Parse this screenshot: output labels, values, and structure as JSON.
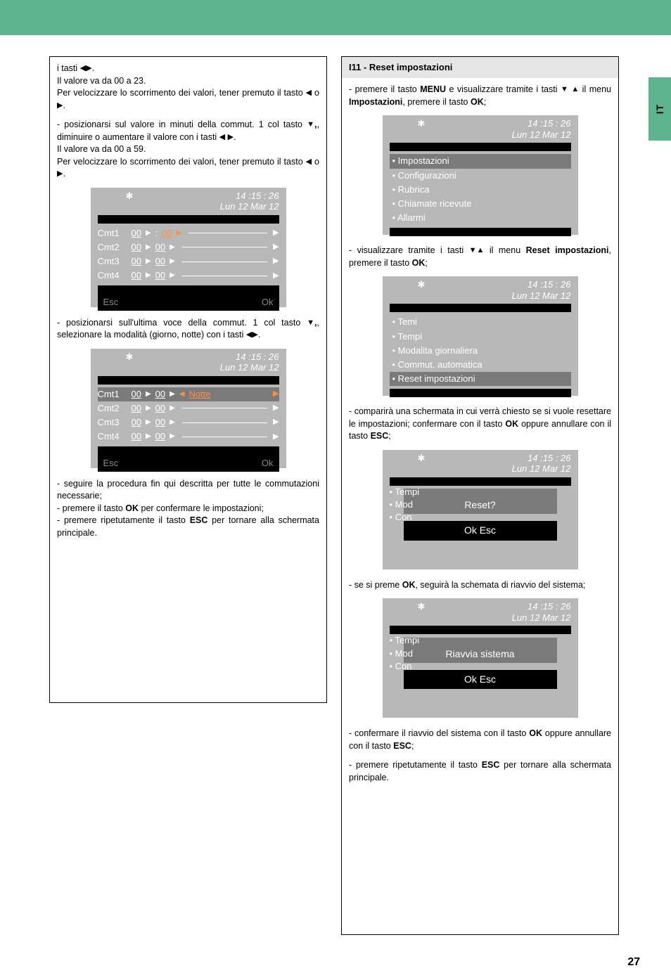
{
  "sideTab": "IT",
  "pageNumber": "27",
  "glyphs": {
    "left": "◀",
    "right": "▶",
    "down": "▼",
    "up": "▲",
    "star": "✱"
  },
  "screens": {
    "timestamp": "14 :15 : 26",
    "date": "Lun 12 Mar 12",
    "cmtLabels": [
      "Cmt1",
      "Cmt2",
      "Cmt3",
      "Cmt4"
    ],
    "esc": "Esc",
    "ok": "Ok",
    "val00": "00",
    "notte": "Notte",
    "mainMenu": [
      "Impostazioni",
      "Configurazioni",
      "Rubrica",
      "Chiamate ricevute",
      "Allarmi"
    ],
    "settingsMenu": [
      "Temi",
      "Tempi",
      "Modalita giornaliera",
      "Commut. automatica",
      "Reset impostazioni"
    ],
    "resetDialog": {
      "behind": [
        "Tempi",
        "Mod",
        "Con"
      ],
      "text": "Reset?",
      "buttons": "Ok   Esc"
    },
    "restartDialog": {
      "behind": [
        "Tempi",
        "Mod",
        "Con"
      ],
      "text": "Riavvia sistema",
      "buttons": "Ok   Esc"
    }
  },
  "left": {
    "p1a": "i tasti ",
    "p1b": ".",
    "p1c": "Il valore va da 00 a 23.",
    "p1d": "Per velocizzare lo scorrimento dei valori, tener premuto il tasto ",
    "p1e": " o ",
    "p1f": ".",
    "p2a": "- posizionarsi sul valore in minuti della commut. 1 col tasto ",
    "p2b": ", diminuire o aumentare il valore con i tasti ",
    "p2c": ".",
    "p2d": "Il valore va da 00 a 59.",
    "p2e": "Per velocizzare lo scorrimento dei valori, tener premuto il tasto ",
    "p2f": " o ",
    "p2g": ".",
    "p3a": "- posizionarsi sull'ultima voce della commut. 1 col tasto ",
    "p3b": ", selezionare la modalità (giorno, notte) con i tasti ",
    "p3c": ".",
    "p4a": "- seguire la procedura fin qui descritta per tutte le commutazioni necessarie;",
    "p4b": "- premere il tasto ",
    "p4b_bold": "OK",
    "p4b_end": " per confermare le impostazioni;",
    "p4c": "- premere ripetutamente il tasto ",
    "p4c_bold": "ESC",
    "p4c_end": " per tornare alla schermata principale."
  },
  "right": {
    "header": "I11 - Reset impostazioni",
    "p1a": "- premere il tasto ",
    "p1a_b": "MENU",
    "p1a_mid": " e visualizzare tramite i tasti ",
    "p1a_mid2": " il menu ",
    "p1a_b2": "Impostazioni",
    "p1a_end": ", premere il tasto ",
    "p1a_b3": "OK",
    "p1a_end2": ";",
    "p2a": "- visualizzare tramite i tasti ",
    "p2a_mid": " il menu ",
    "p2a_b": "Reset impostazioni",
    "p2a_end": ", premere il tasto ",
    "p2a_b2": "OK",
    "p2a_end2": ";",
    "p3a": "- comparirà una schermata in cui verrà chiesto se si vuole resettare le impostazioni; confermare con il tasto ",
    "p3a_b": "OK",
    "p3a_mid": " oppure annullare con il tasto ",
    "p3a_b2": "ESC",
    "p3a_end": ";",
    "p4a": "- se si preme ",
    "p4a_b": "OK",
    "p4a_end": ", seguirà la schemata di riavvio del sistema;",
    "p5a": "- confermare il riavvio del sistema con il tasto ",
    "p5a_b": "OK",
    "p5a_end": " oppure annullare con il tasto ",
    "p5a_b2": "ESC",
    "p5a_end2": ";",
    "p6a": "- premere ripetutamente il tasto ",
    "p6a_b": "ESC",
    "p6a_end": " per tornare alla schermata principale."
  }
}
